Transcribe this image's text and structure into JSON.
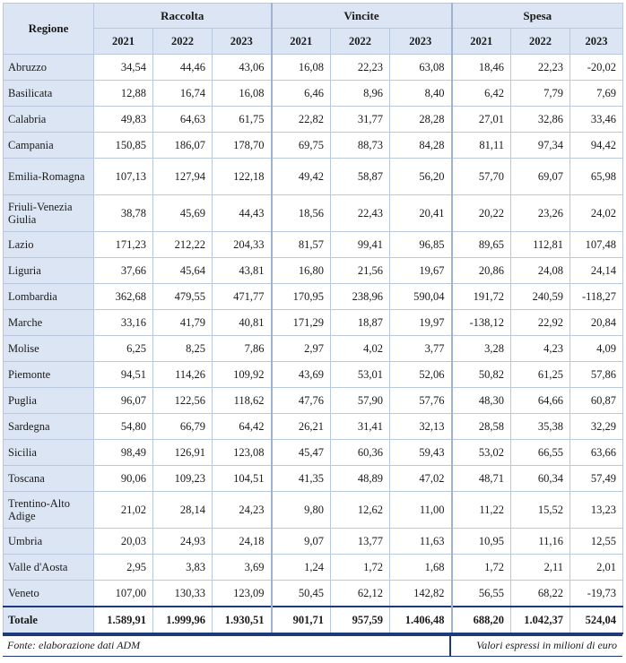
{
  "table": {
    "region_header": "Regione",
    "groups": [
      "Raccolta",
      "Vincite",
      "Spesa"
    ],
    "years": [
      "2021",
      "2022",
      "2023"
    ],
    "rows": [
      {
        "region": "Abruzzo",
        "values": [
          "34,54",
          "44,46",
          "43,06",
          "16,08",
          "22,23",
          "63,08",
          "18,46",
          "22,23",
          "-20,02"
        ]
      },
      {
        "region": "Basilicata",
        "values": [
          "12,88",
          "16,74",
          "16,08",
          "6,46",
          "8,96",
          "8,40",
          "6,42",
          "7,79",
          "7,69"
        ]
      },
      {
        "region": "Calabria",
        "values": [
          "49,83",
          "64,63",
          "61,75",
          "22,82",
          "31,77",
          "28,28",
          "27,01",
          "32,86",
          "33,46"
        ]
      },
      {
        "region": "Campania",
        "values": [
          "150,85",
          "186,07",
          "178,70",
          "69,75",
          "88,73",
          "84,28",
          "81,11",
          "97,34",
          "94,42"
        ]
      },
      {
        "region": "Emilia-Romagna",
        "values": [
          "107,13",
          "127,94",
          "122,18",
          "49,42",
          "58,87",
          "56,20",
          "57,70",
          "69,07",
          "65,98"
        ],
        "tall": true
      },
      {
        "region": "Friuli-Venezia Giulia",
        "values": [
          "38,78",
          "45,69",
          "44,43",
          "18,56",
          "22,43",
          "20,41",
          "20,22",
          "23,26",
          "24,02"
        ],
        "tall": true
      },
      {
        "region": "Lazio",
        "values": [
          "171,23",
          "212,22",
          "204,33",
          "81,57",
          "99,41",
          "96,85",
          "89,65",
          "112,81",
          "107,48"
        ]
      },
      {
        "region": "Liguria",
        "values": [
          "37,66",
          "45,64",
          "43,81",
          "16,80",
          "21,56",
          "19,67",
          "20,86",
          "24,08",
          "24,14"
        ]
      },
      {
        "region": "Lombardia",
        "values": [
          "362,68",
          "479,55",
          "471,77",
          "170,95",
          "238,96",
          "590,04",
          "191,72",
          "240,59",
          "-118,27"
        ]
      },
      {
        "region": "Marche",
        "values": [
          "33,16",
          "41,79",
          "40,81",
          "171,29",
          "18,87",
          "19,97",
          "-138,12",
          "22,92",
          "20,84"
        ]
      },
      {
        "region": "Molise",
        "values": [
          "6,25",
          "8,25",
          "7,86",
          "2,97",
          "4,02",
          "3,77",
          "3,28",
          "4,23",
          "4,09"
        ]
      },
      {
        "region": "Piemonte",
        "values": [
          "94,51",
          "114,26",
          "109,92",
          "43,69",
          "53,01",
          "52,06",
          "50,82",
          "61,25",
          "57,86"
        ]
      },
      {
        "region": "Puglia",
        "values": [
          "96,07",
          "122,56",
          "118,62",
          "47,76",
          "57,90",
          "57,76",
          "48,30",
          "64,66",
          "60,87"
        ]
      },
      {
        "region": "Sardegna",
        "values": [
          "54,80",
          "66,79",
          "64,42",
          "26,21",
          "31,41",
          "32,13",
          "28,58",
          "35,38",
          "32,29"
        ]
      },
      {
        "region": "Sicilia",
        "values": [
          "98,49",
          "126,91",
          "123,08",
          "45,47",
          "60,36",
          "59,43",
          "53,02",
          "66,55",
          "63,66"
        ]
      },
      {
        "region": "Toscana",
        "values": [
          "90,06",
          "109,23",
          "104,51",
          "41,35",
          "48,89",
          "47,02",
          "48,71",
          "60,34",
          "57,49"
        ]
      },
      {
        "region": "Trentino-Alto Adige",
        "values": [
          "21,02",
          "28,14",
          "24,23",
          "9,80",
          "12,62",
          "11,00",
          "11,22",
          "15,52",
          "13,23"
        ],
        "tall": true
      },
      {
        "region": "Umbria",
        "values": [
          "20,03",
          "24,93",
          "24,18",
          "9,07",
          "13,77",
          "11,63",
          "10,95",
          "11,16",
          "12,55"
        ]
      },
      {
        "region": "Valle d'Aosta",
        "values": [
          "2,95",
          "3,83",
          "3,69",
          "1,24",
          "1,72",
          "1,68",
          "1,72",
          "2,11",
          "2,01"
        ]
      },
      {
        "region": "Veneto",
        "values": [
          "107,00",
          "130,33",
          "123,09",
          "50,45",
          "62,12",
          "142,82",
          "56,55",
          "68,22",
          "-19,73"
        ]
      }
    ],
    "total": {
      "region": "Totale",
      "values": [
        "1.589,91",
        "1.999,96",
        "1.930,51",
        "901,71",
        "957,59",
        "1.406,48",
        "688,20",
        "1.042,37",
        "524,04"
      ]
    }
  },
  "footer": {
    "source": "Fonte: elaborazione dati ADM",
    "note": "Valori espressi in milioni di euro"
  }
}
